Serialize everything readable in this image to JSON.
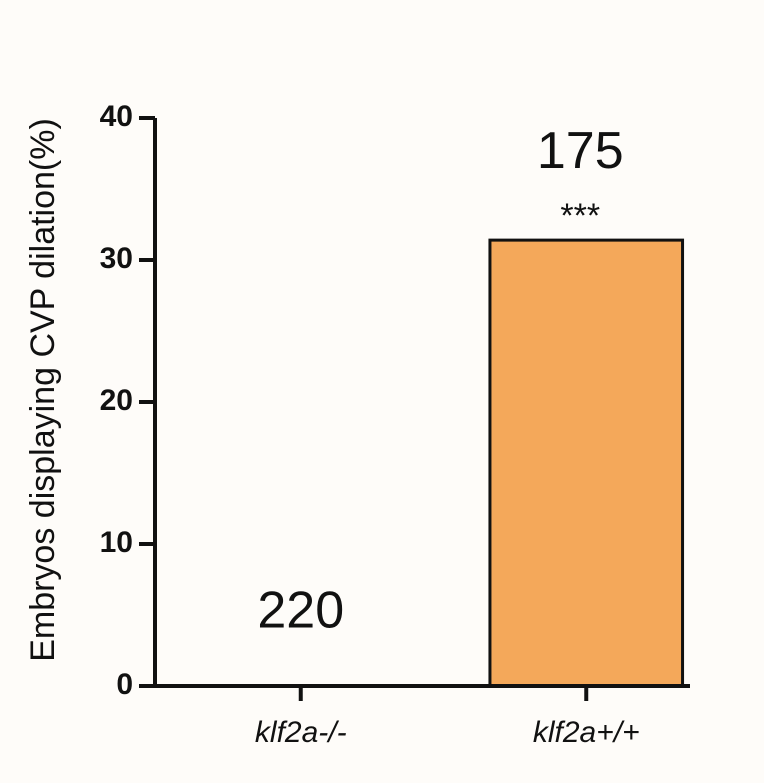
{
  "chart_data": {
    "type": "bar",
    "y_label": "Embryos displaying  CVP dilation(%)",
    "categories": [
      "klf2a-/-",
      "klf2a+/+"
    ],
    "values": [
      0,
      31.4
    ],
    "color": "#f4a85a",
    "sample_sizes": [
      "220",
      "175"
    ],
    "significance": [
      null,
      "***"
    ],
    "ylim": [
      0,
      40
    ],
    "yticks": [
      0,
      10,
      20,
      30,
      40
    ],
    "grid": false
  }
}
